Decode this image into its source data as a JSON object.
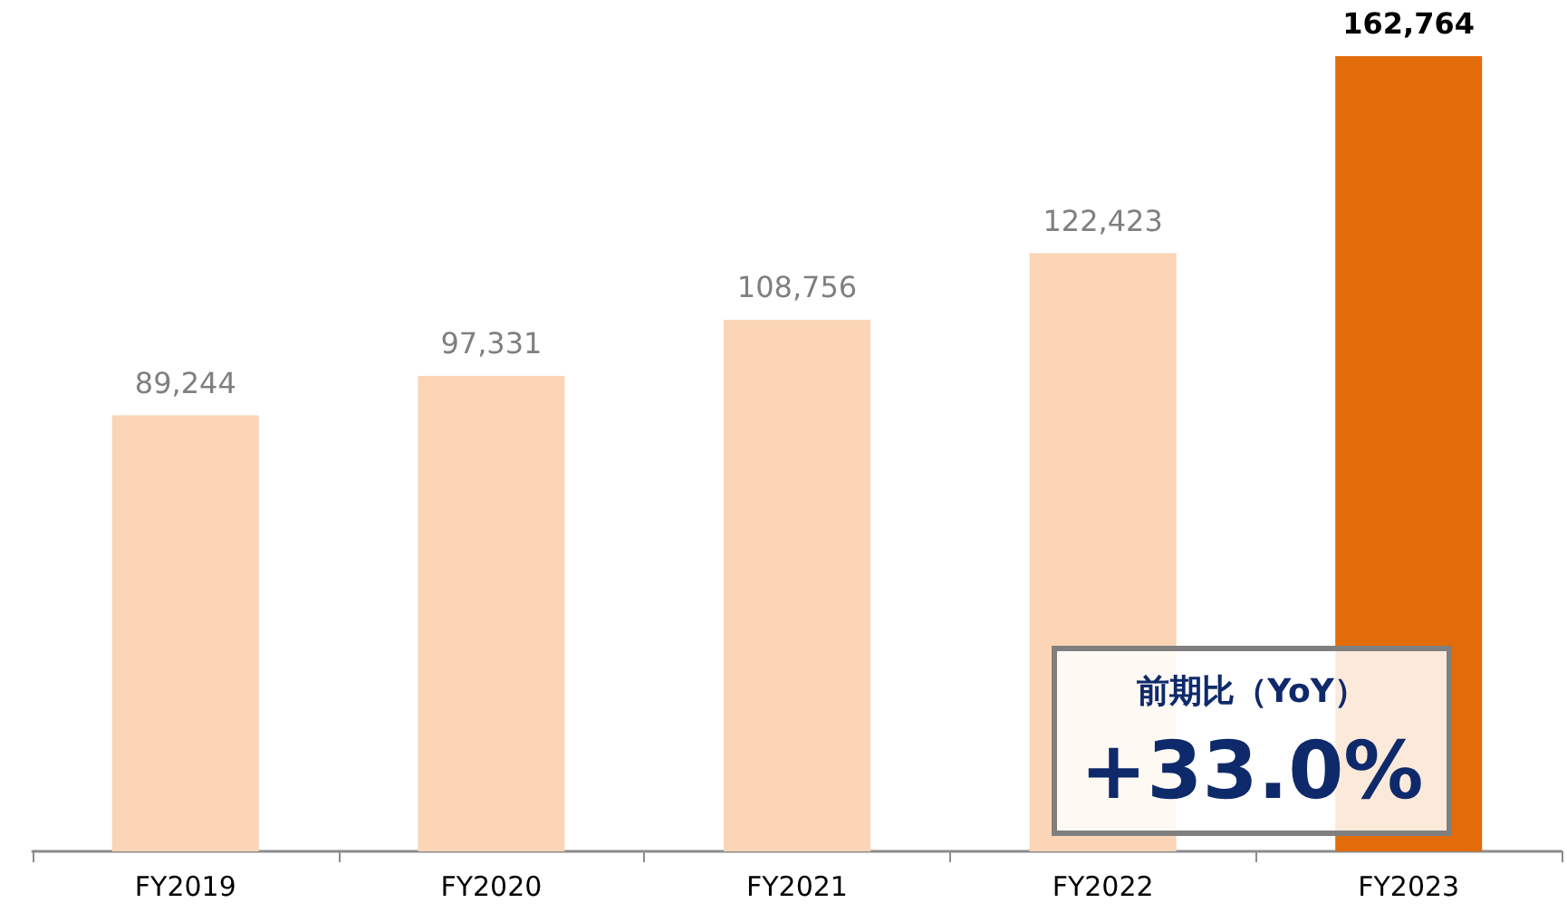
{
  "chart_data": {
    "type": "bar",
    "categories": [
      "FY2019",
      "FY2020",
      "FY2021",
      "FY2022",
      "FY2023"
    ],
    "values": [
      89244,
      97331,
      108756,
      122423,
      162764
    ],
    "value_labels": [
      "89,244",
      "97,331",
      "108,756",
      "122,423",
      "162,764"
    ],
    "colors": [
      "#fbd5b5",
      "#fbd5b5",
      "#fbd5b5",
      "#fbd5b5",
      "#e36c0a"
    ],
    "tick_labels": "x",
    "annotations": [
      "前期比（YoY）",
      "+33.0%"
    ]
  }
}
